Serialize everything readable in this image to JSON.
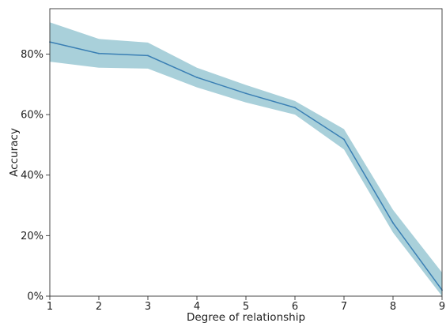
{
  "chart_data": {
    "type": "line",
    "title": "",
    "xlabel": "Degree of relationship",
    "ylabel": "Accuracy",
    "x": [
      1,
      2,
      3,
      4,
      5,
      6,
      7,
      8,
      9
    ],
    "xlim": [
      1,
      9
    ],
    "ylim": [
      0,
      95
    ],
    "y_ticks": [
      0,
      20,
      40,
      60,
      80
    ],
    "y_tick_labels": [
      "0%",
      "20%",
      "40%",
      "60%",
      "80%"
    ],
    "x_tick_labels": [
      "1",
      "2",
      "3",
      "4",
      "5",
      "6",
      "7",
      "8",
      "9"
    ],
    "grid": false,
    "legend": "none",
    "series": [
      {
        "values": [
          84,
          80.2,
          79.5,
          72.3,
          67.0,
          62.3,
          51.8,
          24.2,
          2.0
        ],
        "band_upper": [
          90.5,
          85.0,
          83.8,
          75.5,
          69.8,
          64.5,
          55.2,
          28.5,
          7.8
        ],
        "band_lower": [
          77.5,
          75.5,
          75.2,
          69.0,
          64.0,
          60.0,
          48.5,
          21.0,
          0
        ],
        "line_color": "#3a7fb4",
        "band_color": "#a9d0da"
      }
    ]
  }
}
